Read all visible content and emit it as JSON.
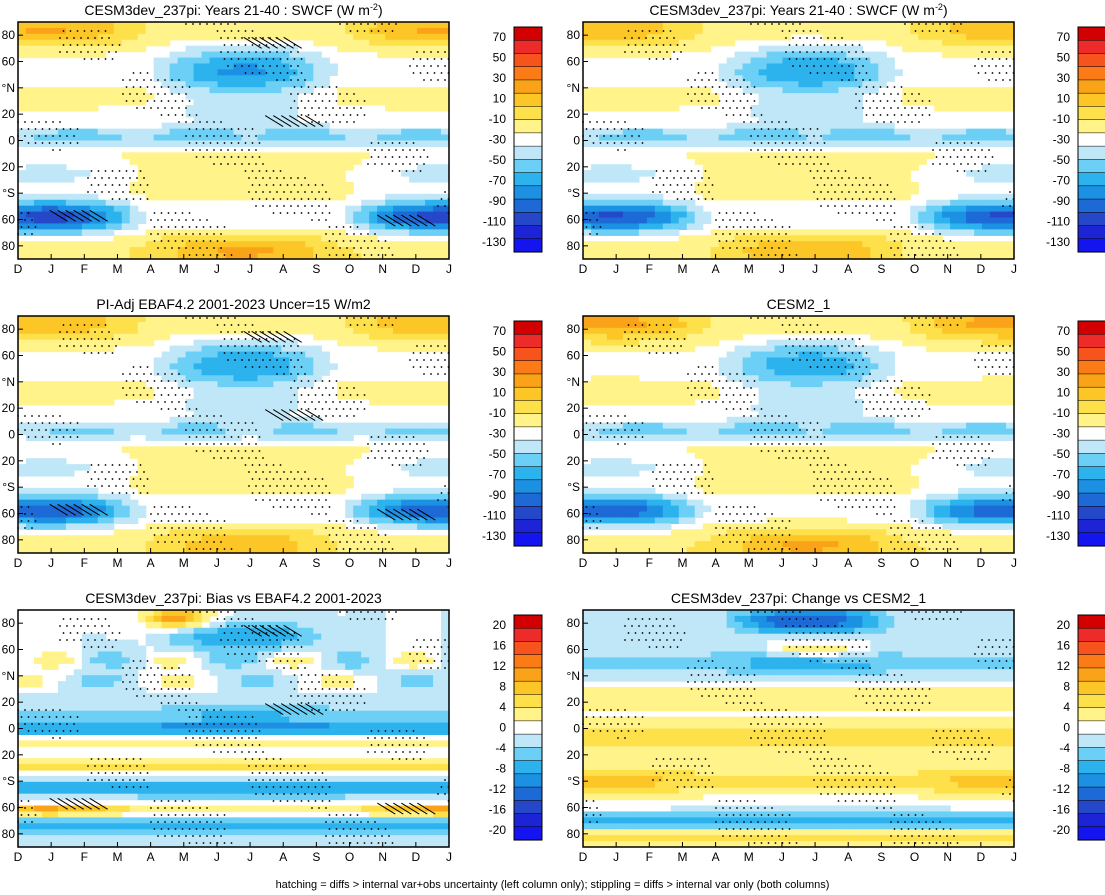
{
  "figure": {
    "footer": "hatching = diffs > internal var+obs uncertainty (left column only); stippling = diffs > internal var only (both columns)"
  },
  "chart_data": [
    {
      "type": "heatmap",
      "id": "p1",
      "title": "CESM3dev_237pi: Years 21-40 : SWCF (W m",
      "title_sup": "-2",
      "title_tail": ")",
      "x_ticks": [
        "D",
        "J",
        "F",
        "M",
        "A",
        "M",
        "J",
        "J",
        "A",
        "S",
        "O",
        "N",
        "D",
        "J"
      ],
      "y_ticks": [
        "80",
        "60",
        "°N",
        "20",
        "0",
        "20",
        "°S",
        "60",
        "80"
      ],
      "colorbar_labels": [
        "70",
        "50",
        "30",
        "10",
        "-10",
        "-30",
        "-50",
        "-70",
        "-90",
        "-110",
        "-130"
      ],
      "colorbar_colors": [
        "#d20000",
        "#ee2b2b",
        "#f7541d",
        "#fb7b16",
        "#fba318",
        "#fcc627",
        "#fde04a",
        "#fff38a",
        "#ffffff",
        "#bfe7f7",
        "#6ccff6",
        "#2cb2ec",
        "#1c90e2",
        "#1d6ad6",
        "#2548c9",
        "#1d24d6",
        "#1414f0"
      ],
      "zmin": -140,
      "zmax": 80,
      "lat_range": [
        -90,
        90
      ],
      "features": {
        "nhMax": 120,
        "nhMin": -95,
        "eqMin": -60,
        "shMax": -100,
        "shMin": -140,
        "polarN": 55,
        "polarS": 55
      },
      "hatched": true
    },
    {
      "type": "heatmap",
      "id": "p2",
      "title": "CESM3dev_237pi: Years 21-40 : SWCF (W m",
      "title_sup": "-2",
      "title_tail": ")",
      "x_ticks": [
        "D",
        "J",
        "F",
        "M",
        "A",
        "M",
        "J",
        "J",
        "A",
        "S",
        "O",
        "N",
        "D",
        "J"
      ],
      "y_ticks": [
        "80",
        "60",
        "°N",
        "20",
        "0",
        "20",
        "°S",
        "60",
        "80"
      ],
      "colorbar_labels": [
        "70",
        "50",
        "30",
        "10",
        "-10",
        "-30",
        "-50",
        "-70",
        "-90",
        "-110",
        "-130"
      ],
      "colorbar_colors": [
        "#d20000",
        "#ee2b2b",
        "#f7541d",
        "#fb7b16",
        "#fba318",
        "#fcc627",
        "#fde04a",
        "#fff38a",
        "#ffffff",
        "#bfe7f7",
        "#6ccff6",
        "#2cb2ec",
        "#1c90e2",
        "#1d6ad6",
        "#2548c9",
        "#1d24d6",
        "#1414f0"
      ],
      "zmin": -140,
      "zmax": 80,
      "lat_range": [
        -90,
        90
      ],
      "features": {
        "nhMax": 110,
        "nhMin": -90,
        "eqMin": -60,
        "shMax": -100,
        "shMin": -135,
        "polarN": 45,
        "polarS": 50
      },
      "hatched": false
    },
    {
      "type": "heatmap",
      "id": "p3",
      "title": "PI-Adj EBAF4.2 2001-2023 Uncer=15 W/m2",
      "title_sup": "",
      "title_tail": "",
      "x_ticks": [
        "D",
        "J",
        "F",
        "M",
        "A",
        "M",
        "J",
        "J",
        "A",
        "S",
        "O",
        "N",
        "D",
        "J"
      ],
      "y_ticks": [
        "80",
        "60",
        "°N",
        "20",
        "0",
        "20",
        "°S",
        "60",
        "80"
      ],
      "colorbar_labels": [
        "70",
        "50",
        "30",
        "10",
        "-10",
        "-30",
        "-50",
        "-70",
        "-90",
        "-110",
        "-130"
      ],
      "colorbar_colors": [
        "#d20000",
        "#ee2b2b",
        "#f7541d",
        "#fb7b16",
        "#fba318",
        "#fcc627",
        "#fde04a",
        "#fff38a",
        "#ffffff",
        "#bfe7f7",
        "#6ccff6",
        "#2cb2ec",
        "#1c90e2",
        "#1d6ad6",
        "#2548c9",
        "#1d24d6",
        "#1414f0"
      ],
      "zmin": -140,
      "zmax": 80,
      "lat_range": [
        -90,
        90
      ],
      "features": {
        "nhMax": 115,
        "nhMin": -90,
        "eqMin": -55,
        "shMax": -95,
        "shMin": -130,
        "polarN": 50,
        "polarS": 45
      },
      "hatched": true
    },
    {
      "type": "heatmap",
      "id": "p4",
      "title": "CESM2_1",
      "title_sup": "",
      "title_tail": "",
      "x_ticks": [
        "D",
        "J",
        "F",
        "M",
        "A",
        "M",
        "J",
        "J",
        "A",
        "S",
        "O",
        "N",
        "D",
        "J"
      ],
      "y_ticks": [
        "80",
        "60",
        "°N",
        "20",
        "0",
        "20",
        "°S",
        "60",
        "80"
      ],
      "colorbar_labels": [
        "70",
        "50",
        "30",
        "10",
        "-10",
        "-30",
        "-50",
        "-70",
        "-90",
        "-110",
        "-130"
      ],
      "colorbar_colors": [
        "#d20000",
        "#ee2b2b",
        "#f7541d",
        "#fb7b16",
        "#fba318",
        "#fcc627",
        "#fde04a",
        "#fff38a",
        "#ffffff",
        "#bfe7f7",
        "#6ccff6",
        "#2cb2ec",
        "#1c90e2",
        "#1d6ad6",
        "#2548c9",
        "#1d24d6",
        "#1414f0"
      ],
      "zmin": -140,
      "zmax": 80,
      "lat_range": [
        -90,
        90
      ],
      "features": {
        "nhMax": 110,
        "nhMin": -85,
        "eqMin": -60,
        "shMax": -95,
        "shMin": -125,
        "polarN": 60,
        "polarS": 55
      },
      "hatched": false
    },
    {
      "type": "heatmap",
      "id": "p5",
      "title": "CESM3dev_237pi: Bias vs EBAF4.2 2001-2023",
      "title_sup": "",
      "title_tail": "",
      "x_ticks": [
        "D",
        "J",
        "F",
        "M",
        "A",
        "M",
        "J",
        "J",
        "A",
        "S",
        "O",
        "N",
        "D",
        "J"
      ],
      "y_ticks": [
        "80",
        "60",
        "°N",
        "20",
        "0",
        "20",
        "°S",
        "60",
        "80"
      ],
      "colorbar_labels": [
        "20",
        "16",
        "12",
        "8",
        "4",
        "0",
        "-4",
        "-8",
        "-12",
        "-16",
        "-20"
      ],
      "colorbar_colors": [
        "#d20000",
        "#ee2b2b",
        "#f7541d",
        "#fb7b16",
        "#fba318",
        "#fcc627",
        "#fde04a",
        "#fff38a",
        "#ffffff",
        "#bfe7f7",
        "#6ccff6",
        "#2cb2ec",
        "#1c90e2",
        "#1d6ad6",
        "#2548c9",
        "#1d24d6",
        "#1414f0"
      ],
      "zmin": -22,
      "zmax": 22,
      "lat_range": [
        -90,
        90
      ],
      "features": {
        "mode": "bias"
      },
      "hatched": true
    },
    {
      "type": "heatmap",
      "id": "p6",
      "title": "CESM3dev_237pi: Change vs CESM2_1",
      "title_sup": "",
      "title_tail": "",
      "x_ticks": [
        "D",
        "J",
        "F",
        "M",
        "A",
        "M",
        "J",
        "J",
        "A",
        "S",
        "O",
        "N",
        "D",
        "J"
      ],
      "y_ticks": [
        "80",
        "60",
        "°N",
        "20",
        "0",
        "20",
        "°S",
        "60",
        "80"
      ],
      "colorbar_labels": [
        "20",
        "16",
        "12",
        "8",
        "4",
        "0",
        "-4",
        "-8",
        "-12",
        "-16",
        "-20"
      ],
      "colorbar_colors": [
        "#d20000",
        "#ee2b2b",
        "#f7541d",
        "#fb7b16",
        "#fba318",
        "#fcc627",
        "#fde04a",
        "#fff38a",
        "#ffffff",
        "#bfe7f7",
        "#6ccff6",
        "#2cb2ec",
        "#1c90e2",
        "#1d6ad6",
        "#2548c9",
        "#1d24d6",
        "#1414f0"
      ],
      "zmin": -22,
      "zmax": 22,
      "lat_range": [
        -90,
        90
      ],
      "features": {
        "mode": "change"
      },
      "hatched": false
    }
  ]
}
